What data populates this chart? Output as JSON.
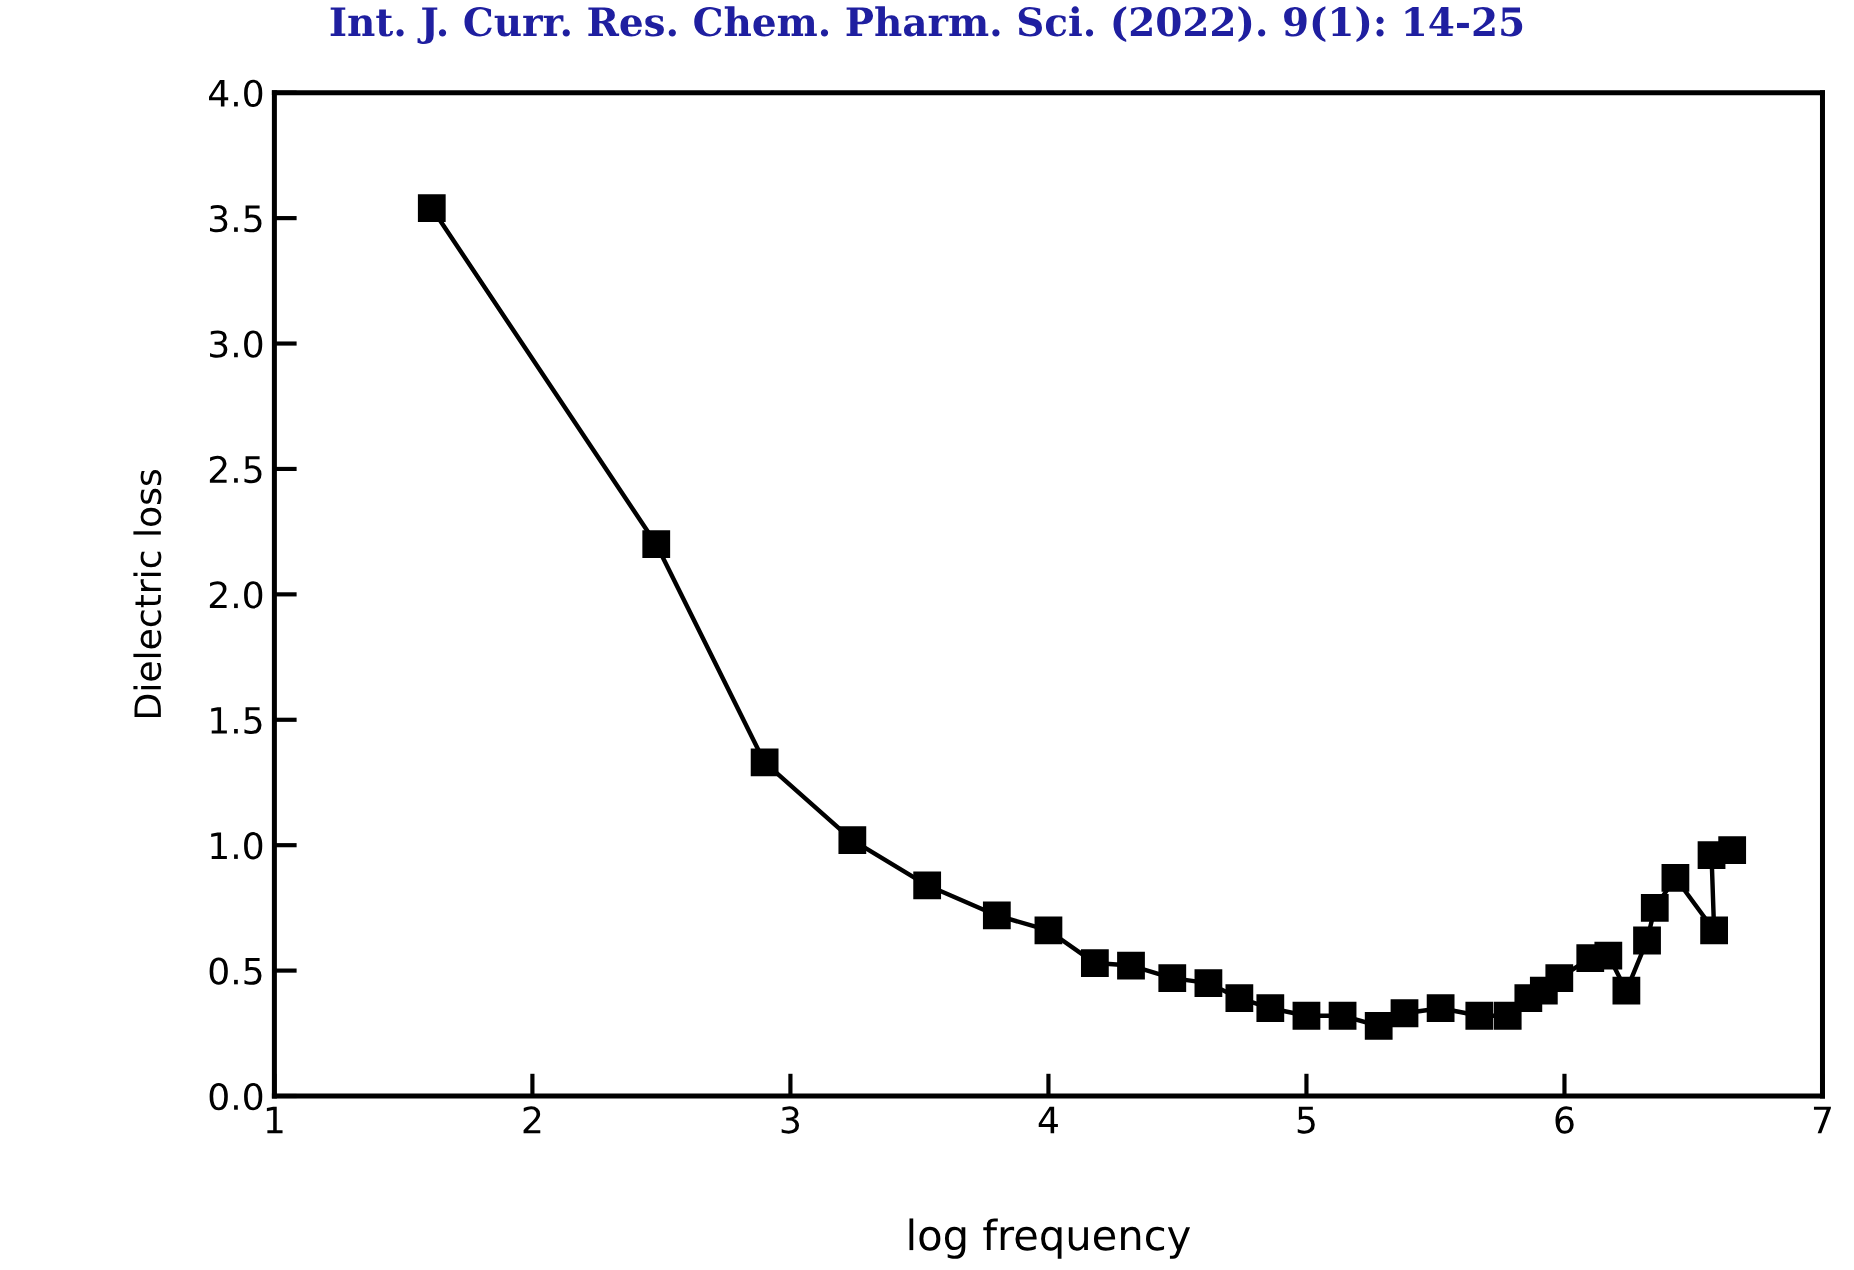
{
  "chart_data": {
    "type": "line",
    "xlabel": "log frequency",
    "ylabel": "Dielectric loss",
    "annotations": [
      "Int. J. Curr. Res. Chem. Pharm. Sci. (2022). 9(1): 14-25"
    ],
    "x": [
      1.61,
      2.48,
      2.9,
      3.24,
      3.53,
      3.8,
      4.0,
      4.18,
      4.32,
      4.48,
      4.62,
      4.74,
      4.86,
      5.0,
      5.14,
      5.28,
      5.38,
      5.52,
      5.67,
      5.78,
      5.86,
      5.92,
      5.98,
      6.1,
      6.17,
      6.24,
      6.32,
      6.35,
      6.43,
      6.58,
      6.57,
      6.65
    ],
    "series": [
      {
        "color": "#000000",
        "values": [
          3.54,
          2.2,
          1.33,
          1.02,
          0.84,
          0.72,
          0.66,
          0.53,
          0.52,
          0.47,
          0.45,
          0.39,
          0.35,
          0.32,
          0.32,
          0.28,
          0.33,
          0.35,
          0.32,
          0.32,
          0.39,
          0.42,
          0.47,
          0.55,
          0.56,
          0.42,
          0.62,
          0.75,
          0.87,
          0.66,
          0.96,
          0.98
        ]
      }
    ],
    "marker": "square",
    "line_style": "solid",
    "grid": false,
    "legend": false,
    "xlim": [
      1,
      7
    ],
    "xticks": [
      1,
      2,
      3,
      4,
      5,
      6,
      7
    ],
    "ylim": [
      0,
      4
    ],
    "yticks": [
      {
        "value": 0,
        "label": "0.0"
      },
      {
        "value": 0.5,
        "label": "0.5"
      },
      {
        "value": 1,
        "label": "1.0"
      },
      {
        "value": 1.5,
        "label": "1.5"
      },
      {
        "value": 2,
        "label": "2.0"
      },
      {
        "value": 2.5,
        "label": "2.5"
      },
      {
        "value": 3,
        "label": "3.0"
      },
      {
        "value": 3.5,
        "label": "3.5"
      },
      {
        "value": 4,
        "label": "4.0"
      }
    ]
  }
}
